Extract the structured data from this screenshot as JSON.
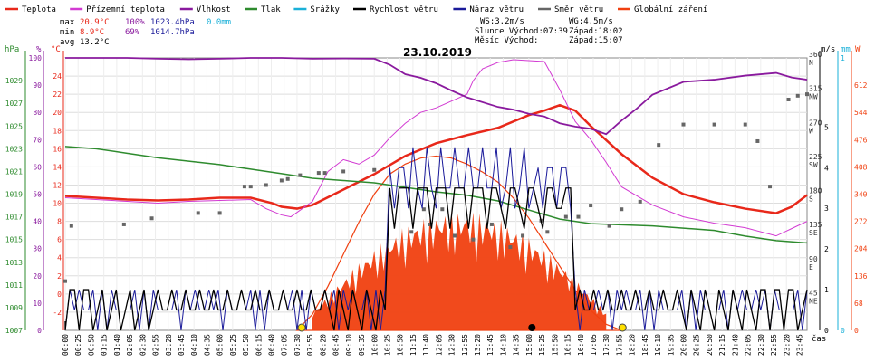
{
  "legend": [
    {
      "label": "Teplota",
      "color": "#e8281a"
    },
    {
      "label": "Přízemní teplota",
      "color": "#d23ad2"
    },
    {
      "label": "Vlhkost",
      "color": "#8a1a9e"
    },
    {
      "label": "Tlak",
      "color": "#2e8b2e"
    },
    {
      "label": "Srážky",
      "color": "#1ab0d8"
    },
    {
      "label": "Rychlost větru",
      "color": "#000000"
    },
    {
      "label": "Náraz větru",
      "color": "#1a1a9a"
    },
    {
      "label": "Směr větru",
      "color": "#666666"
    },
    {
      "label": "Globální záření",
      "color": "#f04010"
    }
  ],
  "stats": {
    "max_label": "max",
    "min_label": "min",
    "avg_label": "avg",
    "max_temp": "20.9°C",
    "min_temp": "8.9°C",
    "avg_temp": "13.2°C",
    "max_hum": "100%",
    "min_hum": "69%",
    "max_press": "1023.4hPa",
    "min_press": "1014.7hPa",
    "rain": "0.0mm",
    "ws": "WS:3.2m/s",
    "wg": "WG:4.5m/s",
    "sun": "Slunce Východ:07:39",
    "sunset": "Západ:18:02",
    "moon": "Měsíc  Východ:",
    "moonset": "Západ:15:07"
  },
  "chart_data": {
    "type": "line",
    "title": "23.10.2019",
    "xlabel": "čas",
    "units_left": [
      "hPa",
      "%",
      "°C"
    ],
    "units_right": [
      "m/s",
      "mm",
      "W"
    ],
    "x_ticks": [
      "00:00",
      "00:25",
      "00:50",
      "01:15",
      "01:40",
      "02:05",
      "02:30",
      "02:55",
      "03:20",
      "03:45",
      "04:10",
      "04:35",
      "05:00",
      "05:25",
      "05:50",
      "06:15",
      "06:40",
      "07:05",
      "07:30",
      "07:55",
      "08:20",
      "08:45",
      "09:10",
      "09:35",
      "10:00",
      "10:25",
      "10:50",
      "11:15",
      "11:40",
      "12:05",
      "12:30",
      "12:55",
      "13:20",
      "13:45",
      "14:10",
      "14:35",
      "15:00",
      "15:25",
      "15:50",
      "16:15",
      "16:40",
      "17:05",
      "17:30",
      "17:55",
      "18:20",
      "18:45",
      "19:10",
      "19:35",
      "20:00",
      "20:25",
      "20:50",
      "21:15",
      "21:40",
      "22:05",
      "22:30",
      "22:55",
      "23:20",
      "23:45"
    ],
    "axis_pressure": {
      "ticks": [
        "1007",
        "1009",
        "1011",
        "1013",
        "1015",
        "1017",
        "1019",
        "1021",
        "1023",
        "1025",
        "1027",
        "1029"
      ],
      "range": [
        1007,
        1031
      ]
    },
    "axis_humidity": {
      "ticks": [
        "0",
        "10",
        "20",
        "30",
        "40",
        "50",
        "60",
        "70",
        "80",
        "90",
        "100"
      ],
      "range": [
        0,
        100
      ]
    },
    "axis_temp": {
      "ticks": [
        "-2",
        "0",
        "2",
        "4",
        "6",
        "8",
        "10",
        "12",
        "14",
        "16",
        "18",
        "20",
        "22",
        "24"
      ],
      "range": [
        -4,
        26
      ]
    },
    "axis_dir": {
      "ticks": [
        {
          "v": "45",
          "d": "NE"
        },
        {
          "v": "90",
          "d": "E"
        },
        {
          "v": "135",
          "d": "SE"
        },
        {
          "v": "180",
          "d": "S"
        },
        {
          "v": "225",
          "d": "SW"
        },
        {
          "v": "270",
          "d": "W"
        },
        {
          "v": "315",
          "d": "NW"
        },
        {
          "v": "360",
          "d": "N"
        }
      ],
      "range": [
        0,
        360
      ]
    },
    "axis_wind": {
      "ticks": [
        "0",
        "1",
        "2",
        "3",
        "4",
        "5"
      ],
      "range": [
        0,
        5
      ]
    },
    "axis_rain": {
      "ticks": [
        "0",
        "1"
      ],
      "range": [
        0,
        1
      ]
    },
    "axis_rad": {
      "ticks": [
        "0",
        "68",
        "136",
        "204",
        "272",
        "340",
        "408",
        "476",
        "544",
        "612"
      ],
      "range": [
        0,
        680
      ]
    },
    "series": [
      {
        "name": "Teplota",
        "color": "#e8281a",
        "x": [
          0,
          1,
          2,
          3,
          4,
          5,
          6,
          6.7,
          7,
          7.5,
          8,
          9,
          10,
          11,
          12,
          13,
          14,
          15,
          15.5,
          16,
          16.5,
          17,
          18,
          19,
          20,
          21,
          22,
          23,
          23.5,
          24
        ],
        "values": [
          10.8,
          10.6,
          10.4,
          10.3,
          10.4,
          10.6,
          10.6,
          10,
          9.6,
          9.4,
          9.8,
          11.5,
          13.2,
          15.2,
          16.6,
          17.5,
          18.3,
          19.7,
          20.2,
          20.8,
          20.2,
          18.5,
          15.4,
          12.8,
          11,
          10.1,
          9.4,
          8.9,
          9.6,
          10.9
        ]
      },
      {
        "name": "Přízemní teplota",
        "color": "#d23ad2",
        "x": [
          0,
          1,
          2,
          3,
          4,
          5,
          6,
          6.5,
          7,
          7.3,
          8,
          8.5,
          9,
          9.5,
          10,
          10.5,
          11,
          11.5,
          12,
          13,
          13.2,
          13.5,
          14,
          14.5,
          15,
          15.5,
          16,
          16.5,
          17,
          17.5,
          18,
          19,
          20,
          21,
          22,
          23,
          23.5,
          24
        ],
        "values": [
          10.6,
          10.4,
          10.2,
          10,
          10.2,
          10.3,
          10.4,
          9.4,
          8.7,
          8.5,
          10.2,
          13.5,
          14.8,
          14.3,
          15.3,
          17.2,
          18.8,
          20,
          20.5,
          22,
          23.5,
          24.8,
          25.5,
          25.8,
          25.7,
          25.6,
          22.5,
          19,
          17,
          14.5,
          11.8,
          9.8,
          8.5,
          7.8,
          7.3,
          6.4,
          7.2,
          8
        ]
      },
      {
        "name": "Vlhkost",
        "color": "#8a1a9e",
        "x": [
          0,
          1,
          2,
          3,
          4,
          5,
          6,
          7,
          8,
          9,
          10,
          10.5,
          11,
          11.5,
          12,
          12.5,
          13,
          14,
          14.5,
          15,
          15.5,
          16,
          16.5,
          17,
          17.5,
          18,
          18.5,
          19,
          20,
          21,
          22,
          23,
          23.5,
          24
        ],
        "values": [
          100,
          100,
          100,
          99.7,
          99.5,
          99.7,
          100,
          100,
          99.7,
          99.8,
          99.7,
          97.5,
          94,
          92.7,
          90.7,
          88,
          85.5,
          82,
          81,
          79.5,
          78.5,
          76,
          74.8,
          74,
          72,
          77,
          81.5,
          86.5,
          91.2,
          92,
          93.5,
          94.5,
          92.8,
          92
        ]
      },
      {
        "name": "Tlak",
        "color": "#2e8b2e",
        "x": [
          0,
          1,
          2,
          3,
          4,
          5,
          6,
          7,
          8,
          9,
          10,
          11,
          12,
          13,
          14,
          15,
          16,
          17,
          18,
          19,
          20,
          21,
          22,
          23,
          24
        ],
        "values": [
          1023.2,
          1023,
          1022.6,
          1022.2,
          1021.9,
          1021.6,
          1021.2,
          1020.8,
          1020.4,
          1020.2,
          1020,
          1019.6,
          1019.2,
          1018.9,
          1018.4,
          1017.6,
          1016.8,
          1016.4,
          1016.3,
          1016.2,
          1016,
          1015.8,
          1015.3,
          1014.9,
          1014.7
        ]
      },
      {
        "name": "Globální záření",
        "color": "#f04010",
        "x": [
          7.5,
          8,
          8.5,
          9,
          9.5,
          10,
          10.5,
          11,
          11.5,
          12,
          12.5,
          13,
          13.5,
          14,
          14.5,
          15,
          15.5,
          16,
          16.5,
          17,
          17.5,
          18
        ],
        "values": [
          0,
          40,
          110,
          190,
          270,
          340,
          390,
          415,
          430,
          435,
          430,
          415,
          395,
          370,
          330,
          280,
          220,
          160,
          100,
          50,
          15,
          0
        ]
      },
      {
        "name": "Směr větru",
        "color": "#666666",
        "x": [
          0,
          0.2,
          1.9,
          2.8,
          4.3,
          5,
          5.8,
          6,
          6.5,
          7,
          7.2,
          7.6,
          8.2,
          8.4,
          9,
          10,
          11.2,
          11.6,
          11.8,
          12.2,
          12.6,
          13.2,
          13.8,
          14.4,
          14.8,
          15.4,
          15.6,
          16.2,
          16.6,
          17,
          17.6,
          18,
          18.6,
          19.2,
          20,
          21,
          22,
          22.4,
          22.8,
          23.4,
          23.7,
          24
        ],
        "values": [
          65,
          138,
          140,
          148,
          155,
          155,
          190,
          190,
          192,
          198,
          200,
          205,
          208,
          208,
          210,
          212,
          130,
          160,
          140,
          160,
          125,
          120,
          140,
          110,
          125,
          145,
          130,
          150,
          150,
          165,
          138,
          160,
          170,
          245,
          272,
          272,
          272,
          250,
          190,
          305,
          310,
          312
        ]
      }
    ],
    "wind_speed_note": "Rychlost větru and Náraz větru step traces, m/s, 0-5",
    "grid": true,
    "legend_position": "top"
  }
}
